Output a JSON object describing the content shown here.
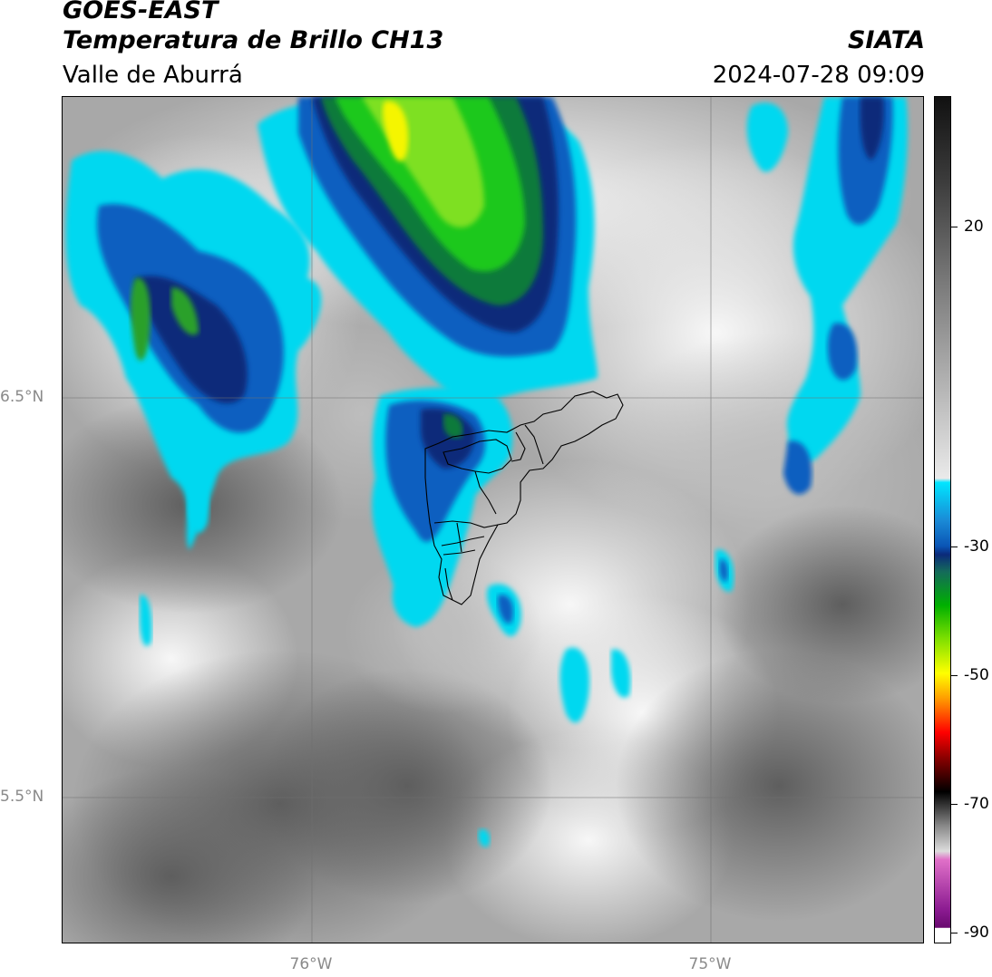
{
  "header": {
    "satellite": "GOES-EAST",
    "product": "Temperatura de Brillo CH13",
    "org": "SIATA",
    "region": "Valle de Aburrá",
    "timestamp": "2024-07-28 09:09"
  },
  "map": {
    "lat_labels": [
      "6.5°N",
      "5.5°N"
    ],
    "lon_labels": [
      "76°W",
      "75°W"
    ]
  },
  "colorbar": {
    "tick_labels": [
      "20",
      "-30",
      "-50",
      "-70",
      "-90"
    ],
    "range": [
      -90,
      40
    ],
    "colors": {
      "warm_grey_dark": "#5a5a5a",
      "warm_grey_light": "#f4f4f4",
      "cyan": "#00e5ff",
      "blue": "#0a55b5",
      "navy": "#0b2a7a",
      "green": "#00c400",
      "yellow": "#ffff00",
      "orange": "#ff8c00",
      "red": "#ff0000",
      "black": "#000000",
      "magenta": "#d040c0",
      "purple": "#7a1080"
    }
  }
}
